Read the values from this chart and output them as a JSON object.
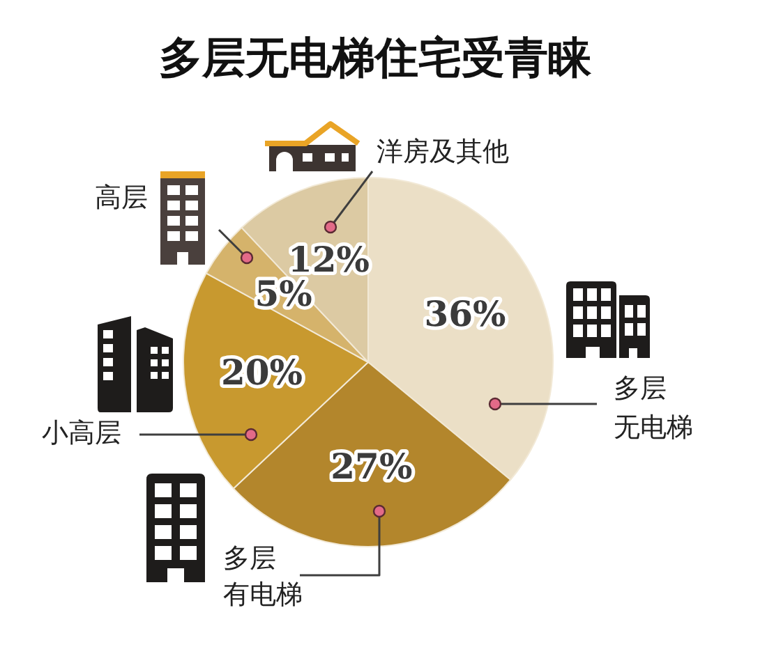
{
  "chart_data": {
    "type": "pie",
    "title": "多层无电梯住宅受青睐",
    "categories": [
      "多层无电梯",
      "多层有电梯",
      "小高层",
      "高层",
      "洋房及其他"
    ],
    "values": [
      36,
      27,
      20,
      5,
      12
    ],
    "colors": [
      "#ebdfc6",
      "#b3862c",
      "#c8992f",
      "#d5b36b",
      "#dccaa3"
    ],
    "value_labels": [
      "36%",
      "27%",
      "20%",
      "5%",
      "12%"
    ]
  }
}
